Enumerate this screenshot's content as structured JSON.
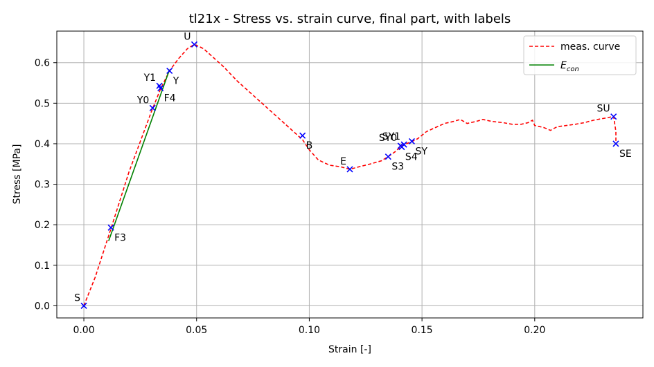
{
  "chart_data": {
    "type": "line",
    "title": "tl21x - Stress vs. strain curve, final part, with labels",
    "xlabel": "Strain [-]",
    "ylabel": "Stress [MPa]",
    "xlim": [
      -0.012,
      0.248
    ],
    "ylim": [
      -0.03,
      0.678
    ],
    "xticks": [
      0.0,
      0.05,
      0.1,
      0.15,
      0.2
    ],
    "xtick_labels": [
      "0.00",
      "0.05",
      "0.10",
      "0.15",
      "0.20"
    ],
    "yticks": [
      0.0,
      0.1,
      0.2,
      0.3,
      0.4,
      0.5,
      0.6
    ],
    "ytick_labels": [
      "0.0",
      "0.1",
      "0.2",
      "0.3",
      "0.4",
      "0.5",
      "0.6"
    ],
    "grid": true,
    "legend_position": "top-right",
    "series": [
      {
        "name": "meas. curve",
        "style": "dashed",
        "color": "#ff0000",
        "x": [
          0.0,
          0.005,
          0.012,
          0.02,
          0.03,
          0.034,
          0.038,
          0.042,
          0.046,
          0.049,
          0.053,
          0.057,
          0.062,
          0.068,
          0.075,
          0.082,
          0.088,
          0.093,
          0.097,
          0.1,
          0.104,
          0.109,
          0.114,
          0.118,
          0.122,
          0.127,
          0.132,
          0.135,
          0.138,
          0.14,
          0.142,
          0.145,
          0.148,
          0.152,
          0.156,
          0.16,
          0.164,
          0.167,
          0.17,
          0.174,
          0.177,
          0.181,
          0.186,
          0.19,
          0.194,
          0.197,
          0.199,
          0.2,
          0.204,
          0.207,
          0.21,
          0.214,
          0.218,
          0.222,
          0.226,
          0.23,
          0.233,
          0.235,
          0.236,
          0.236
        ],
        "y": [
          0.0,
          0.07,
          0.19,
          0.33,
          0.48,
          0.535,
          0.58,
          0.61,
          0.635,
          0.645,
          0.635,
          0.615,
          0.59,
          0.555,
          0.52,
          0.485,
          0.455,
          0.43,
          0.41,
          0.385,
          0.36,
          0.347,
          0.343,
          0.337,
          0.343,
          0.35,
          0.358,
          0.368,
          0.38,
          0.39,
          0.398,
          0.404,
          0.412,
          0.43,
          0.44,
          0.45,
          0.455,
          0.46,
          0.45,
          0.455,
          0.46,
          0.455,
          0.452,
          0.448,
          0.448,
          0.452,
          0.458,
          0.445,
          0.44,
          0.433,
          0.442,
          0.445,
          0.448,
          0.452,
          0.458,
          0.462,
          0.465,
          0.468,
          0.43,
          0.4
        ]
      },
      {
        "name": "$E_{con}$",
        "style": "solid",
        "color": "#008000",
        "x": [
          0.011,
          0.038
        ],
        "y": [
          0.16,
          0.583
        ]
      }
    ],
    "points": [
      {
        "label": "S",
        "x": 0.0,
        "y": 0.0,
        "pos": "upper-left"
      },
      {
        "label": "F3",
        "x": 0.012,
        "y": 0.193,
        "pos": "lower-right"
      },
      {
        "label": "Y0",
        "x": 0.0305,
        "y": 0.488,
        "pos": "upper-left"
      },
      {
        "label": "Y1",
        "x": 0.0335,
        "y": 0.543,
        "pos": "upper-left"
      },
      {
        "label": "F4",
        "x": 0.034,
        "y": 0.537,
        "pos": "lower-right"
      },
      {
        "label": "Y",
        "x": 0.038,
        "y": 0.58,
        "pos": "lower-right"
      },
      {
        "label": "U",
        "x": 0.049,
        "y": 0.645,
        "pos": "upper-left"
      },
      {
        "label": "B",
        "x": 0.097,
        "y": 0.42,
        "pos": "lower-right"
      },
      {
        "label": "E",
        "x": 0.118,
        "y": 0.337,
        "pos": "upper-left"
      },
      {
        "label": "S3",
        "x": 0.135,
        "y": 0.368,
        "pos": "lower-right"
      },
      {
        "label": "SY0",
        "x": 0.1405,
        "y": 0.395,
        "pos": "upper-left"
      },
      {
        "label": "SY1",
        "x": 0.142,
        "y": 0.398,
        "pos": "upper-left"
      },
      {
        "label": "S4",
        "x": 0.141,
        "y": 0.392,
        "pos": "lower-right"
      },
      {
        "label": "SY",
        "x": 0.1455,
        "y": 0.406,
        "pos": "lower-right"
      },
      {
        "label": "SU",
        "x": 0.235,
        "y": 0.467,
        "pos": "upper-left"
      },
      {
        "label": "SE",
        "x": 0.236,
        "y": 0.4,
        "pos": "lower-right"
      }
    ],
    "marker_color": "#0000ff"
  },
  "legend": {
    "items": [
      {
        "label": "meas. curve",
        "color": "#ff0000",
        "style": "dashed"
      },
      {
        "label": "E",
        "sub": "con",
        "color": "#008000",
        "style": "solid"
      }
    ]
  }
}
